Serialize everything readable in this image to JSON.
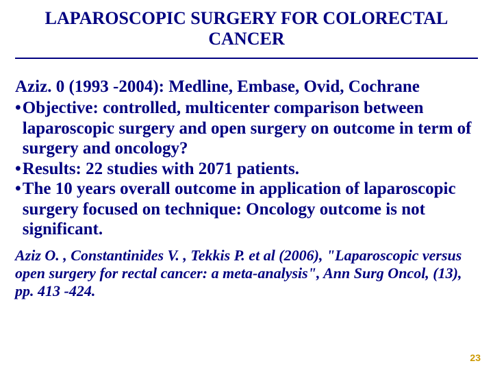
{
  "colors": {
    "text": "#000080",
    "rule": "#000080",
    "background": "#ffffff",
    "pageno": "#cc9900"
  },
  "typography": {
    "title_fontsize": 26,
    "body_fontsize": 25,
    "ref_fontsize": 22,
    "pageno_fontsize": 14,
    "family": "Times New Roman"
  },
  "title": "LAPAROSCOPIC SURGERY FOR COLORECTAL CANCER",
  "lead": "Aziz. 0 (1993 -2004): Medline, Embase, Ovid, Cochrane",
  "bullets": {
    "b0": "Objective: controlled, multicenter comparison between laparoscopic surgery and open surgery on outcome in term of surgery and oncology?",
    "b1": "Results: 22 studies with 2071 patients.",
    "b2": "The 10 years overall outcome in application of laparoscopic surgery focused on technique: Oncology outcome is not significant."
  },
  "bullet_char": "•",
  "reference": "Aziz O. , Constantinides V. , Tekkis P. et al (2006), \"Laparoscopic versus open surgery for rectal cancer: a meta-analysis\", Ann Surg Oncol, (13), pp. 413 -424.",
  "page_number": "23"
}
